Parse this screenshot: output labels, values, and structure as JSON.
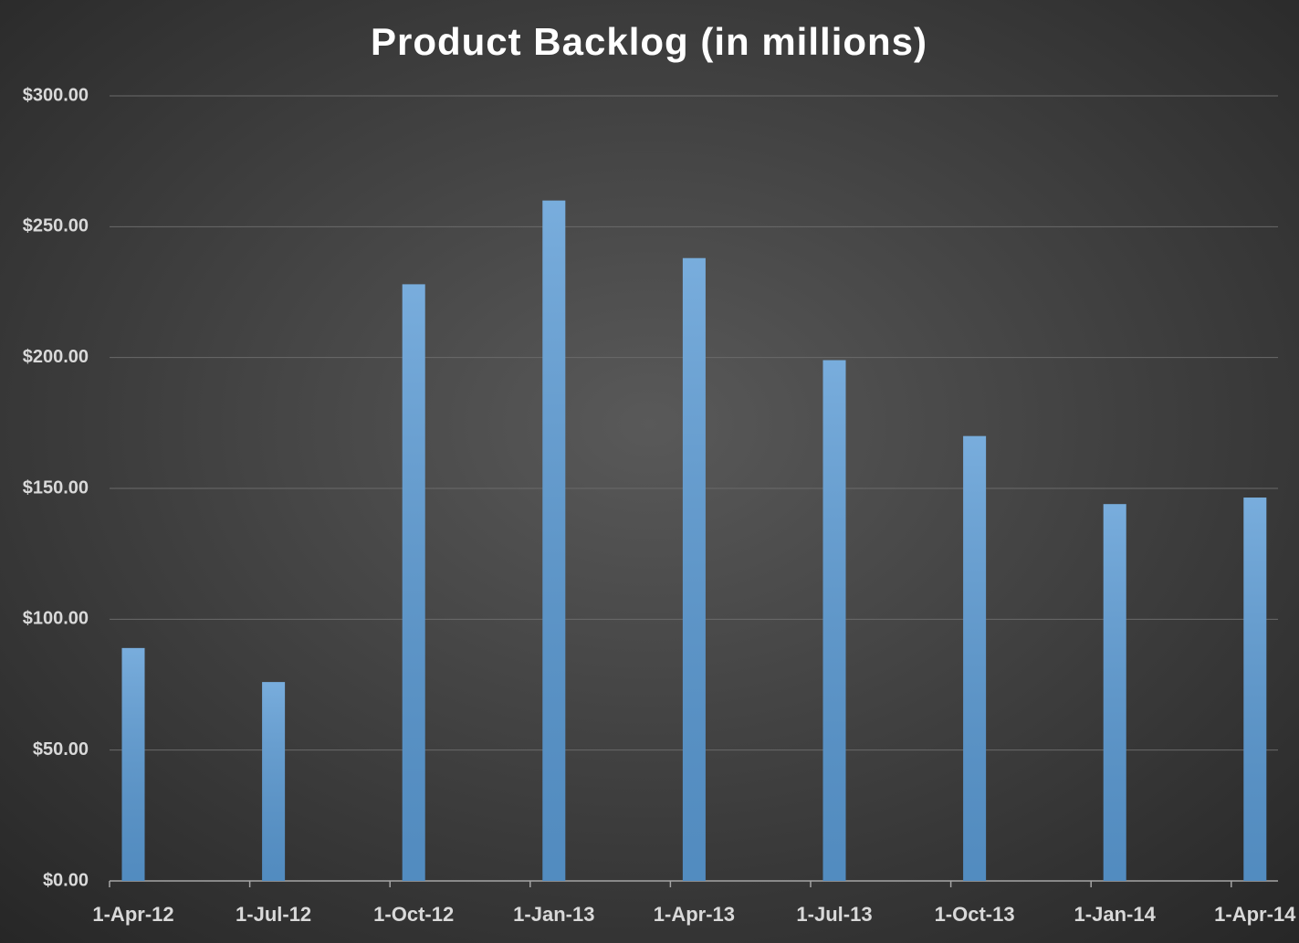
{
  "chart_data": {
    "type": "bar",
    "title": "Product Backlog (in millions)",
    "categories": [
      "1-Apr-12",
      "1-Jul-12",
      "1-Oct-12",
      "1-Jan-13",
      "1-Apr-13",
      "1-Jul-13",
      "1-Oct-13",
      "1-Jan-14",
      "1-Apr-14"
    ],
    "values": [
      89,
      76,
      228,
      260,
      238,
      199,
      170,
      144,
      146.5
    ],
    "color": "#5b9bd5",
    "ylim": [
      0,
      300
    ],
    "yticks": [
      {
        "value": 0,
        "label": "$0.00"
      },
      {
        "value": 50,
        "label": "$50.00"
      },
      {
        "value": 100,
        "label": "$100.00"
      },
      {
        "value": 150,
        "label": "$150.00"
      },
      {
        "value": 200,
        "label": "$200.00"
      },
      {
        "value": 250,
        "label": "$250.00"
      },
      {
        "value": 300,
        "label": "$300.00"
      }
    ],
    "grid": true
  }
}
